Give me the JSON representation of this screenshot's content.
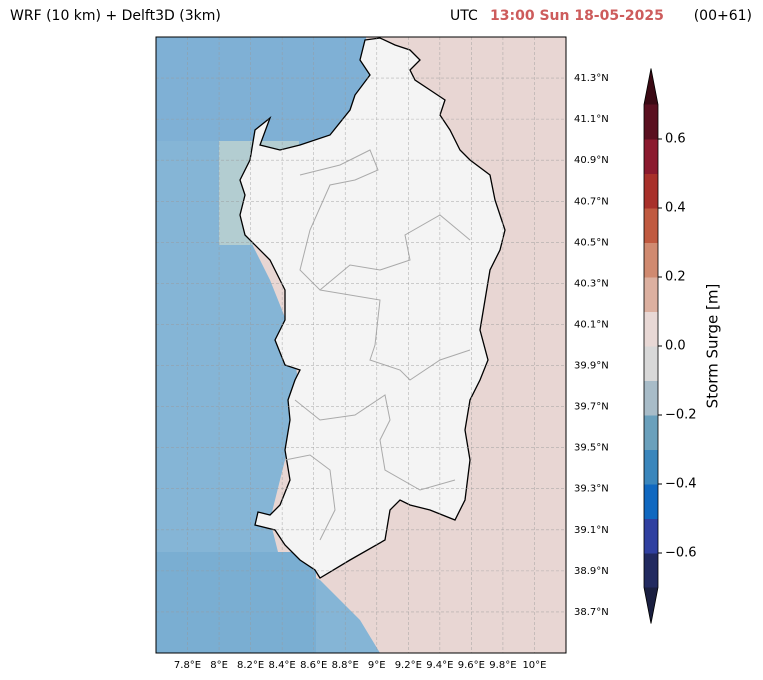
{
  "header": {
    "title": "WRF (10 km) + Delft3D (3km)",
    "zone": "UTC",
    "time": "13:00 Sun 18-05-2025",
    "lead": "(00+61)",
    "time_color": "#cd5c5c"
  },
  "map": {
    "lonlim": [
      7.6,
      10.2
    ],
    "latlim": [
      38.5,
      41.5
    ],
    "lonticks": [
      {
        "value": 7.8,
        "label": "7.8°E"
      },
      {
        "value": 8.0,
        "label": "8°E"
      },
      {
        "value": 8.2,
        "label": "8.2°E"
      },
      {
        "value": 8.4,
        "label": "8.4°E"
      },
      {
        "value": 8.6,
        "label": "8.6°E"
      },
      {
        "value": 8.8,
        "label": "8.8°E"
      },
      {
        "value": 9.0,
        "label": "9°E"
      },
      {
        "value": 9.2,
        "label": "9.2°E"
      },
      {
        "value": 9.4,
        "label": "9.4°E"
      },
      {
        "value": 9.6,
        "label": "9.6°E"
      },
      {
        "value": 9.8,
        "label": "9.8°E"
      },
      {
        "value": 10.0,
        "label": "10°E"
      }
    ],
    "latticks": [
      {
        "value": 38.7,
        "label": "38.7°N"
      },
      {
        "value": 38.9,
        "label": "38.9°N"
      },
      {
        "value": 39.1,
        "label": "39.1°N"
      },
      {
        "value": 39.3,
        "label": "39.3°N"
      },
      {
        "value": 39.5,
        "label": "39.5°N"
      },
      {
        "value": 39.7,
        "label": "39.7°N"
      },
      {
        "value": 39.9,
        "label": "39.9°N"
      },
      {
        "value": 40.1,
        "label": "40.1°N"
      },
      {
        "value": 40.3,
        "label": "40.3°N"
      },
      {
        "value": 40.5,
        "label": "40.5°N"
      },
      {
        "value": 40.7,
        "label": "40.7°N"
      },
      {
        "value": 40.9,
        "label": "40.9°N"
      },
      {
        "value": 41.1,
        "label": "41.1°N"
      },
      {
        "value": 41.3,
        "label": "41.3°N"
      }
    ],
    "grid": true
  },
  "colorbar": {
    "label": "Storm Surge [m]",
    "lim": [
      -0.7,
      0.7
    ],
    "ticks": [
      {
        "value": -0.6,
        "label": "−0.6"
      },
      {
        "value": -0.4,
        "label": "−0.4"
      },
      {
        "value": -0.2,
        "label": "−0.2"
      },
      {
        "value": 0,
        "label": "0.0"
      },
      0.2,
      0.4,
      0.6
    ],
    "colors": [
      "#222a60",
      "#3040a0",
      "#1068c0",
      "#3a86bc",
      "#6aa0bc",
      "#a8bcc8",
      "#d8d8d8",
      "#e8d8d5",
      "#dcb0a0",
      "#d08a70",
      "#c05a40",
      "#a8302a",
      "#8b1a2e",
      "#5a1020"
    ],
    "under_color": "#1a1f40",
    "over_color": "#3a0a14"
  }
}
